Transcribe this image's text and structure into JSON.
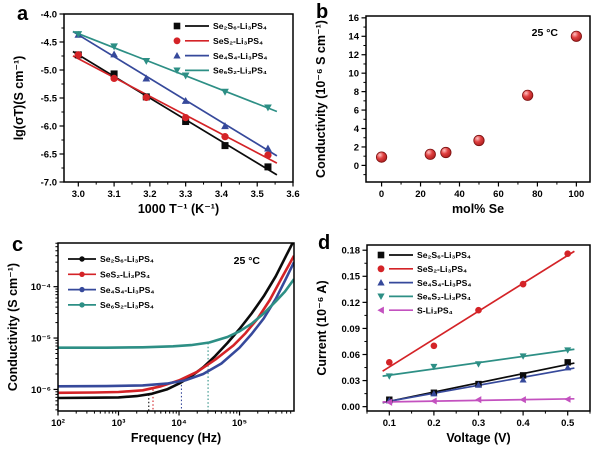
{
  "figure": {
    "background": "#ffffff",
    "frame_color": "#000000",
    "series_colors": {
      "black": "#0b0b0b",
      "red": "#d42327",
      "blue": "#36499b",
      "teal": "#2d8f85",
      "magenta": "#c351bf"
    }
  },
  "chart_data": [
    {
      "panel": "a",
      "type": "scatter-fitline",
      "xlabel": "1000 T⁻¹ (K⁻¹)",
      "ylabel": "lg(σT)(S cm⁻¹)",
      "xlim": [
        2.96,
        3.6
      ],
      "ylim": [
        -7.0,
        -4.0
      ],
      "xticks": {
        "values": [
          3.0,
          3.1,
          3.2,
          3.3,
          3.4,
          3.5,
          3.6
        ],
        "labels": [
          "3.0",
          "3.1",
          "3.2",
          "3.3",
          "3.4",
          "3.5",
          "3.6"
        ],
        "minor_step": 0.05
      },
      "yticks": {
        "values": [
          -7.0,
          -6.5,
          -6.0,
          -5.5,
          -5.0,
          -4.5,
          -4.0
        ],
        "labels": [
          "-7.0",
          "-6.5",
          "-6.0",
          "-5.5",
          "-5.0",
          "-4.5",
          "-4.0"
        ],
        "minor_step": 0.25
      },
      "legend_position": "top-right",
      "x": [
        3.0,
        3.1,
        3.19,
        3.3,
        3.41,
        3.53
      ],
      "fit_x_range": [
        2.985,
        3.555
      ],
      "series": [
        {
          "name": "Se₂S₆-Li₃PS₄",
          "color": "#0b0b0b",
          "marker": "square",
          "values": [
            -4.73,
            -5.07,
            -5.48,
            -5.92,
            -6.35,
            -6.73
          ]
        },
        {
          "name": "SeS₂-Li₃PS₄",
          "color": "#d42327",
          "marker": "circle",
          "values": [
            -4.73,
            -5.15,
            -5.49,
            -5.85,
            -6.19,
            -6.52
          ]
        },
        {
          "name": "Se₄S₄-Li₃PS₄",
          "color": "#36499b",
          "marker": "triangle-up",
          "values": [
            -4.37,
            -4.72,
            -5.15,
            -5.55,
            -6.0,
            -6.4
          ]
        },
        {
          "name": "Se₆S₂-Li₃PS₄",
          "color": "#2d8f85",
          "marker": "triangle-down",
          "values": [
            -4.36,
            -4.58,
            -4.84,
            -5.1,
            -5.39,
            -5.67
          ]
        }
      ]
    },
    {
      "panel": "b",
      "type": "scatter",
      "annotation": "25 °C",
      "xlabel": "mol% Se",
      "ylabel": "Conductivity (10⁻⁶ S cm⁻¹)",
      "xlim": [
        -8,
        107
      ],
      "ylim": [
        -1.8,
        16.2
      ],
      "xticks": {
        "values": [
          0,
          20,
          40,
          60,
          80,
          100
        ],
        "labels": [
          "0",
          "20",
          "40",
          "60",
          "80",
          "100"
        ],
        "minor_step": 10
      },
      "yticks": {
        "values": [
          0,
          2,
          4,
          6,
          8,
          10,
          12,
          14,
          16
        ],
        "labels": [
          "0",
          "2",
          "4",
          "6",
          "8",
          "10",
          "12",
          "14",
          "16"
        ],
        "minor_step": 1
      },
      "marker": "sphere",
      "color": "#d42327",
      "points": {
        "x": [
          0,
          25,
          33,
          50,
          75,
          100
        ],
        "y": [
          0.9,
          1.2,
          1.4,
          2.7,
          7.6,
          14.0
        ]
      }
    },
    {
      "panel": "c",
      "type": "loglog-lines",
      "annotation": "25 °C",
      "xlabel": "Frequency (Hz)",
      "ylabel": "Conductivity (S cm⁻¹)",
      "xlim_log": [
        2.0,
        5.9
      ],
      "ylim_log": [
        -6.42,
        -3.15
      ],
      "xticks": {
        "values": [
          2,
          3,
          4,
          5
        ],
        "labels": [
          "10²",
          "10³",
          "10⁴",
          "10⁵"
        ]
      },
      "yticks": {
        "values": [
          -6,
          -5,
          -4
        ],
        "labels": [
          "10⁻⁶",
          "10⁻⁵",
          "10⁻⁴"
        ]
      },
      "legend_position": "top-left",
      "series": [
        {
          "name": "Se₂S₆-Li₃PS₄",
          "color": "#0b0b0b",
          "marker": "circle",
          "log_f": [
            2.0,
            2.6,
            3.0,
            3.3,
            3.55,
            3.8,
            4.0,
            4.2,
            4.4,
            4.6,
            4.8,
            5.0,
            5.2,
            5.4,
            5.6,
            5.78,
            5.9
          ],
          "sigma": [
            6.8e-07,
            6.9e-07,
            7e-07,
            7.4e-07,
            8.2e-07,
            1e-06,
            1.3e-06,
            1.8e-06,
            2.7e-06,
            4.5e-06,
            8e-06,
            1.5e-05,
            3e-05,
            6.5e-05,
            0.00016,
            0.00042,
            0.0008
          ]
        },
        {
          "name": "SeS₂-Li₃PS₄",
          "color": "#d42327",
          "marker": "circle",
          "log_f": [
            2.0,
            2.6,
            3.0,
            3.4,
            3.7,
            4.0,
            4.3,
            4.6,
            4.9,
            5.1,
            5.3,
            5.5,
            5.7,
            5.9
          ],
          "sigma": [
            8.6e-07,
            8.7e-07,
            8.9e-07,
            9.6e-07,
            1.15e-06,
            1.5e-06,
            2.2e-06,
            3.8e-06,
            7.2e-06,
            1.25e-05,
            2.4e-05,
            5.5e-05,
            0.00015,
            0.0004
          ]
        },
        {
          "name": "Se₄S₄-Li₃PS₄",
          "color": "#36499b",
          "marker": "circle",
          "log_f": [
            2.0,
            2.8,
            3.4,
            3.8,
            4.1,
            4.4,
            4.7,
            5.0,
            5.2,
            5.4,
            5.6,
            5.75,
            5.9
          ],
          "sigma": [
            1.15e-06,
            1.16e-06,
            1.2e-06,
            1.3e-06,
            1.5e-06,
            2e-06,
            3.2e-06,
            6.5e-06,
            1.2e-05,
            2.4e-05,
            5.8e-05,
            0.00013,
            0.0003
          ]
        },
        {
          "name": "Se₆S₂-Li₃PS₄",
          "color": "#2d8f85",
          "marker": "circle",
          "log_f": [
            2.0,
            2.8,
            3.4,
            3.9,
            4.2,
            4.5,
            4.8,
            5.0,
            5.2,
            5.4,
            5.6,
            5.75,
            5.9
          ],
          "sigma": [
            6.5e-06,
            6.5e-06,
            6.6e-06,
            6.9e-06,
            7.3e-06,
            8.2e-06,
            1.05e-05,
            1.35e-05,
            1.9e-05,
            3e-05,
            5.2e-05,
            8e-05,
            0.00014
          ]
        }
      ],
      "droplines": [
        {
          "log_f": 3.5,
          "sigma_top": 8e-07,
          "color": "#0b0b0b"
        },
        {
          "log_f": 3.57,
          "sigma_top": 1e-06,
          "color": "#d42327"
        },
        {
          "log_f": 4.04,
          "sigma_top": 1.45e-06,
          "color": "#36499b"
        },
        {
          "log_f": 4.48,
          "sigma_top": 8e-06,
          "color": "#2d8f85"
        }
      ]
    },
    {
      "panel": "d",
      "type": "scatter-fitline",
      "xlabel": "Voltage (V)",
      "ylabel": "Current (10⁻⁶ A)",
      "xlim": [
        0.05,
        0.55
      ],
      "ylim": [
        -0.005,
        0.186
      ],
      "xticks": {
        "values": [
          0.1,
          0.2,
          0.3,
          0.4,
          0.5
        ],
        "labels": [
          "0.1",
          "0.2",
          "0.3",
          "0.4",
          "0.5"
        ],
        "minor_step": 0.05
      },
      "yticks": {
        "values": [
          0,
          0.03,
          0.06,
          0.09,
          0.12,
          0.15,
          0.18
        ],
        "labels": [
          "0.00",
          "0.03",
          "0.06",
          "0.09",
          "0.12",
          "0.15",
          "0.18"
        ],
        "minor_step": 0.015
      },
      "legend_position": "top-left",
      "x": [
        0.1,
        0.2,
        0.3,
        0.4,
        0.5
      ],
      "fit_x_range": [
        0.085,
        0.515
      ],
      "series": [
        {
          "name": "Se₂S₆-Li₃PS₄",
          "color": "#0b0b0b",
          "marker": "square",
          "values": [
            0.008,
            0.016,
            0.026,
            0.036,
            0.051
          ]
        },
        {
          "name": "SeS₂-Li₃PS₄",
          "color": "#d42327",
          "marker": "circle",
          "values": [
            0.051,
            0.07,
            0.111,
            0.141,
            0.176
          ]
        },
        {
          "name": "Se₄S₄-Li₃PS₄",
          "color": "#36499b",
          "marker": "triangle-up",
          "values": [
            0.007,
            0.015,
            0.025,
            0.031,
            0.045
          ]
        },
        {
          "name": "Se₆S₂-Li₃PS₄",
          "color": "#2d8f85",
          "marker": "triangle-down",
          "values": [
            0.035,
            0.046,
            0.049,
            0.058,
            0.065
          ]
        },
        {
          "name": "S-Li₃PS₄",
          "color": "#c351bf",
          "marker": "triangle-left",
          "values": [
            0.005,
            0.0065,
            0.008,
            0.008,
            0.0085
          ]
        }
      ]
    }
  ]
}
